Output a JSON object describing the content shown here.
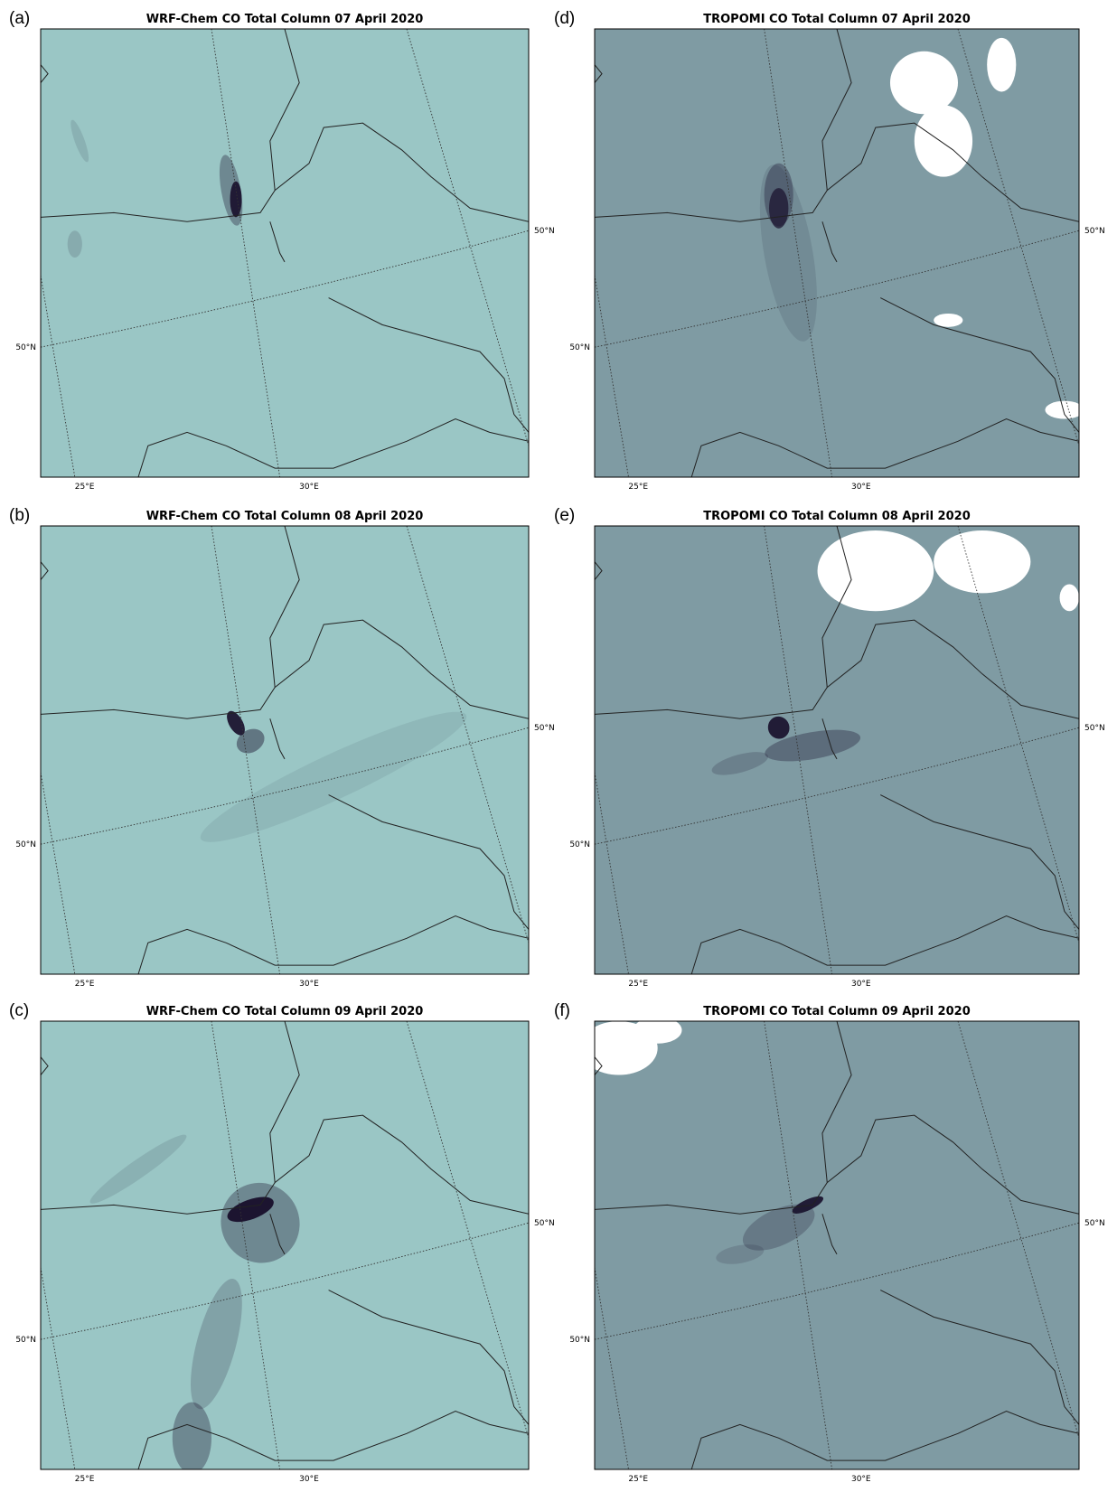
{
  "panels": [
    {
      "label": "(a)",
      "title": "WRF-Chem CO Total Column 07 April 2020",
      "lat_labels": [
        "50°N",
        "50°N"
      ],
      "lon_labels": [
        "25°E",
        "30°E"
      ]
    },
    {
      "label": "(b)",
      "title": "WRF-Chem CO Total Column 08 April 2020",
      "lat_labels": [
        "50°N",
        "50°N"
      ],
      "lon_labels": [
        "25°E",
        "30°E"
      ]
    },
    {
      "label": "(c)",
      "title": "WRF-Chem CO Total Column 09 April 2020",
      "lat_labels": [
        "50°N",
        "50°N"
      ],
      "lon_labels": [
        "25°E",
        "30°E"
      ]
    },
    {
      "label": "(d)",
      "title": "TROPOMI CO Total Column 07 April 2020",
      "lat_labels": [
        "50°N",
        "50°N"
      ],
      "lon_labels": [
        "25°E",
        "30°E"
      ]
    },
    {
      "label": "(e)",
      "title": "TROPOMI CO Total Column 08 April 2020",
      "lat_labels": [
        "50°N",
        "50°N"
      ],
      "lon_labels": [
        "25°E",
        "30°E"
      ]
    },
    {
      "label": "(f)",
      "title": "TROPOMI CO Total Column 09 April 2020",
      "lat_labels": [
        "50°N",
        "50°N"
      ],
      "lon_labels": [
        "25°E",
        "30°E"
      ]
    }
  ]
}
